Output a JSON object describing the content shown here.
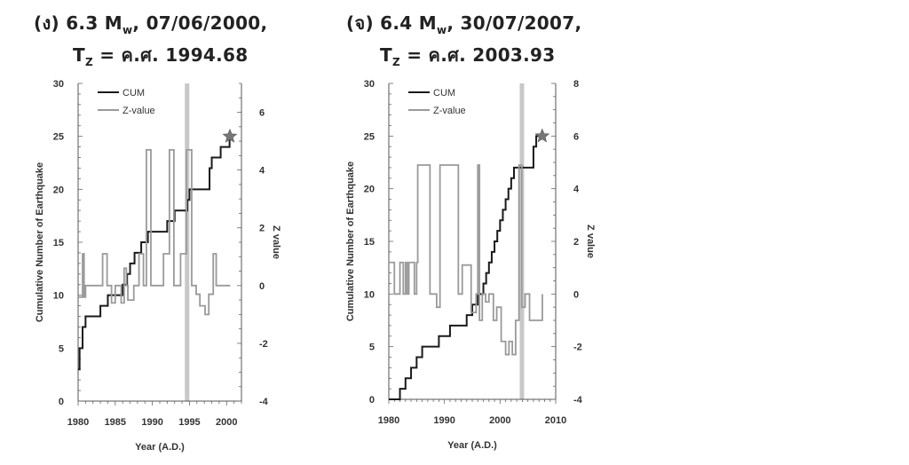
{
  "panels": [
    {
      "title": {
        "line1_prefix": "(ง) 6.3 M",
        "line1_sub": "w",
        "line1_suffix": ", 07/06/2000,",
        "line2_prefix": "T",
        "line2_sub": "Z",
        "line2_suffix": " = ค.ศ. 1994.68"
      }
    },
    {
      "title": {
        "line1_prefix": "(จ) 6.4 M",
        "line1_sub": "w",
        "line1_suffix": ", 30/07/2007,",
        "line2_prefix": "T",
        "line2_sub": "Z",
        "line2_suffix": " = ค.ศ. 2003.93"
      }
    }
  ],
  "chart_data": [
    {
      "type": "line",
      "xlabel": "Year (A.D.)",
      "ylabel": "Cumulative Number of Earthquake",
      "y2label": "Z value",
      "xlim": [
        1980,
        2002
      ],
      "xticks": [
        1980,
        1985,
        1990,
        1995,
        2000
      ],
      "ylim": [
        0,
        30
      ],
      "yticks": [
        0,
        5,
        10,
        15,
        20,
        25,
        30
      ],
      "y2lim": [
        -4,
        7
      ],
      "y2ticks": [
        -4,
        -2,
        0,
        2,
        4,
        6
      ],
      "legend": [
        "CUM",
        "Z-value"
      ],
      "legend_position": "top-left",
      "series": [
        {
          "name": "CUM",
          "axis": "left",
          "color": "#1a1a1a",
          "step": true,
          "x": [
            1980,
            1980.2,
            1980.6,
            1981,
            1983,
            1984,
            1986,
            1986.6,
            1987,
            1987.6,
            1988.5,
            1989.4,
            1992,
            1993,
            1994.7,
            1995,
            1997.7,
            1998,
            1998.5,
            1999.2,
            2000,
            2000.4
          ],
          "y": [
            3,
            5,
            7,
            8,
            9,
            10,
            11,
            12,
            13,
            14,
            15,
            16,
            17,
            18,
            19,
            20,
            22,
            23,
            23,
            24,
            24,
            25
          ]
        },
        {
          "name": "Z-value",
          "axis": "right",
          "color": "#9a9a9a",
          "step": true,
          "x": [
            1980,
            1980.6,
            1980.8,
            1981.0,
            1983.3,
            1983.9,
            1984.5,
            1985.0,
            1985.8,
            1986.2,
            1986.5,
            1986.7,
            1987.5,
            1988.2,
            1988.8,
            1989.2,
            1989.8,
            1991.5,
            1992.3,
            1992.9,
            1993.8,
            1994.6,
            1995.3,
            1995.9,
            1996.4,
            1997.1,
            1997.6,
            1998.2,
            1998.6,
            2000.5
          ],
          "y": [
            -0.4,
            1.1,
            -0.4,
            0.0,
            1.1,
            0.0,
            -0.6,
            0.0,
            -0.6,
            0.6,
            0.0,
            -0.5,
            0.0,
            1.1,
            0.0,
            4.7,
            0.0,
            1.1,
            4.7,
            0.0,
            1.1,
            4.7,
            0.0,
            -0.3,
            -0.7,
            -1.0,
            -0.3,
            1.1,
            0.0,
            0.0
          ]
        }
      ],
      "highlight_x": 1994.68,
      "mainshock": {
        "x": 2000.44,
        "y": 25
      }
    },
    {
      "type": "line",
      "xlabel": "Year (A.D.)",
      "ylabel": "Cumulative Number of Earthquake",
      "y2label": "Z value",
      "xlim": [
        1980,
        2010
      ],
      "xticks": [
        1980,
        1990,
        2000,
        2010
      ],
      "ylim": [
        0,
        30
      ],
      "yticks": [
        0,
        5,
        10,
        15,
        20,
        25,
        30
      ],
      "y2lim": [
        -4,
        8
      ],
      "y2ticks": [
        -4,
        -2,
        0,
        2,
        4,
        6,
        8
      ],
      "legend": [
        "CUM",
        "Z-value"
      ],
      "legend_position": "top-left",
      "series": [
        {
          "name": "CUM",
          "axis": "left",
          "color": "#1a1a1a",
          "step": true,
          "x": [
            1980,
            1982,
            1983,
            1984,
            1985,
            1986,
            1989,
            1991,
            1994,
            1995,
            1996,
            1997,
            1997.5,
            1998,
            1998.5,
            1999,
            1999.5,
            2000,
            2000.5,
            2001,
            2001.5,
            2002,
            2002.5,
            2003,
            2003.5,
            2004,
            2006,
            2006.5,
            2007,
            2007.6
          ],
          "y": [
            0,
            1,
            2,
            3,
            4,
            5,
            6,
            7,
            8,
            9,
            10,
            11,
            12,
            13,
            14,
            15,
            16,
            17,
            18,
            19,
            20,
            21,
            22,
            22,
            22,
            22,
            24,
            25,
            25,
            25
          ]
        },
        {
          "name": "Z-value",
          "axis": "right",
          "color": "#9a9a9a",
          "step": true,
          "x": [
            1980,
            1981,
            1982,
            1982.6,
            1983,
            1983.3,
            1983.6,
            1984.6,
            1985,
            1985.2,
            1987.4,
            1988.6,
            1989.2,
            1992.5,
            1993.2,
            1994.8,
            1995.7,
            1996.0,
            1996.3,
            1996.8,
            1997.4,
            1998.0,
            1998.8,
            1999.4,
            2000.2,
            2001,
            2001.6,
            2002.2,
            2002.8,
            2003.4,
            2003.9,
            2004.5,
            2005.3,
            2007.6
          ],
          "y": [
            1.2,
            0.0,
            1.2,
            0.0,
            1.2,
            0.0,
            1.2,
            0.0,
            1.2,
            4.9,
            0.0,
            -0.5,
            4.9,
            0.0,
            1.1,
            -0.7,
            0.0,
            4.9,
            -1.0,
            0.0,
            -0.3,
            0.0,
            -1.0,
            -0.5,
            -1.8,
            -2.3,
            -1.8,
            -2.3,
            -1.0,
            4.9,
            -0.5,
            0.0,
            -1.0,
            0.0
          ]
        }
      ],
      "highlight_x": 2003.93,
      "mainshock": {
        "x": 2007.58,
        "y": 25
      }
    }
  ]
}
